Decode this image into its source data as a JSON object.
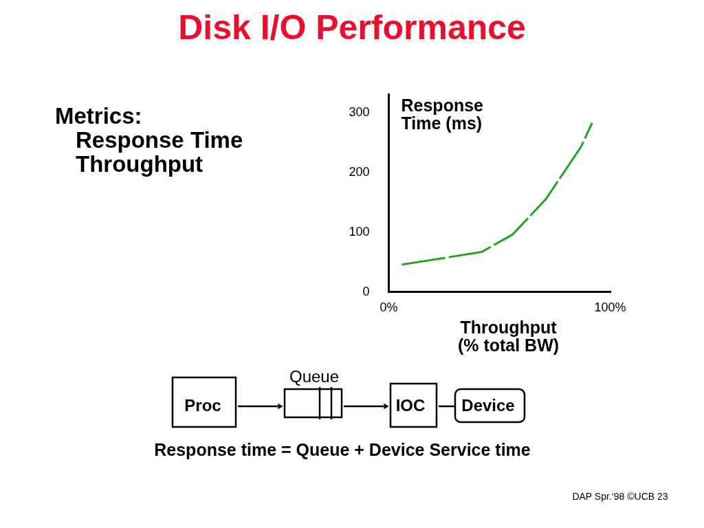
{
  "chart_data": {
    "type": "line",
    "title": "Disk I/O Performance",
    "xlabel": "Throughput\n(% total BW)",
    "ylabel": "Response\nTime (ms)",
    "x": [
      6,
      42,
      56,
      71,
      87,
      92
    ],
    "series": [
      {
        "color": "#1fa51f",
        "values": [
          45,
          66,
          95,
          154,
          242,
          282
        ]
      }
    ],
    "xlim": [
      0,
      100
    ],
    "xticks": [
      {
        "value": 0,
        "label": "0%"
      },
      {
        "value": 100,
        "label": "100%"
      }
    ],
    "ylim": [
      0,
      330
    ],
    "yticks": [
      0,
      100,
      200,
      300
    ],
    "grid": false,
    "line_style": "dashed",
    "annotations": [
      "Metrics:",
      "Response Time",
      "Throughput",
      "Queue",
      "Proc",
      "IOC",
      "Device",
      "Response time = Queue + Device Service time",
      "DAP Spr.‘98 ©UCB 23"
    ]
  }
}
